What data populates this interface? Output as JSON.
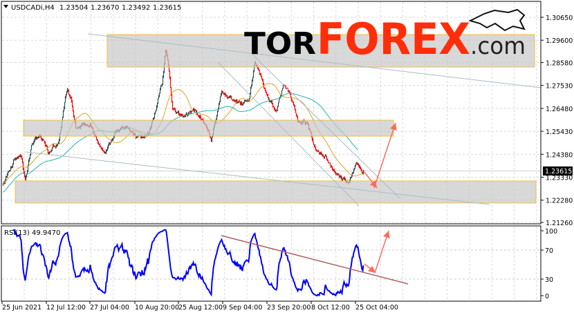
{
  "header": {
    "dropdown_icon": "triangle-down-icon",
    "symbol": "USDCADi,H4",
    "open": "1.23504",
    "high": "1.23670",
    "low": "1.23492",
    "close": "1.23615"
  },
  "logo": {
    "part1": "TOR",
    "part2": "FOREX",
    "part3": ".com",
    "icon": "wolf-head-icon"
  },
  "chart_data": [
    {
      "type": "candlestick",
      "symbol": "USDCADi",
      "timeframe": "H4",
      "ylim": [
        1.2126,
        1.3065
      ],
      "y_ticks": [
        "1.30650",
        "1.29600",
        "1.28580",
        "1.27530",
        "1.26480",
        "1.25430",
        "1.24380",
        "1.23330",
        "1.22280",
        "1.21260"
      ],
      "current_price": "1.23615",
      "x_ticks": [
        "25 Jun 2021",
        "12 Jul 12:00",
        "27 Jul 04:00",
        "10 Aug 20:00",
        "25 Aug 12:00",
        "9 Sep 04:00",
        "23 Sep 20:00",
        "8 Oct 12:00",
        "25 Oct 04:00"
      ],
      "grid": true,
      "colors": {
        "bull": "#2f4f4f",
        "bear": "#ff0000",
        "ma_fast": "#daa520",
        "ma_slow": "#20b2aa",
        "zone_border": "#f0c040",
        "trendline": "#a9bcc8",
        "forecast_arrow": "#ff6a5a"
      },
      "price_path": [
        [
          "2021-06-25T12",
          1.2297
        ],
        [
          "2021-06-29T14",
          1.2411
        ],
        [
          "2021-07-02T10",
          1.2433
        ],
        [
          "2021-07-04T00",
          1.2316
        ],
        [
          "2021-07-06T12",
          1.248
        ],
        [
          "2021-07-10T00",
          1.2527
        ],
        [
          "2021-07-13T00",
          1.2448
        ],
        [
          "2021-07-16T14",
          1.2496
        ],
        [
          "2021-07-19T10",
          1.2733
        ],
        [
          "2021-07-20T17",
          1.2686
        ],
        [
          "2021-07-22T07",
          1.2559
        ],
        [
          "2021-07-27T04",
          1.2575
        ],
        [
          "2021-07-30T14",
          1.2464
        ],
        [
          "2021-08-01T00",
          1.2433
        ],
        [
          "2021-08-04T04",
          1.2527
        ],
        [
          "2021-08-07T16",
          1.2559
        ],
        [
          "2021-08-11T22",
          1.2512
        ],
        [
          "2021-08-15T10",
          1.2527
        ],
        [
          "2021-08-17T16",
          1.2638
        ],
        [
          "2021-08-20T00",
          1.2765
        ],
        [
          "2021-08-21T03",
          1.2923
        ],
        [
          "2021-08-22T07",
          1.2828
        ],
        [
          "2021-08-23T10",
          1.2638
        ],
        [
          "2021-08-27T02",
          1.2607
        ],
        [
          "2021-08-30T12",
          1.2638
        ],
        [
          "2021-09-03T00",
          1.2591
        ],
        [
          "2021-09-05T07",
          1.2512
        ],
        [
          "2021-09-08T17",
          1.2717
        ],
        [
          "2021-09-12T04",
          1.2701
        ],
        [
          "2021-09-15T14",
          1.267
        ],
        [
          "2021-09-17T22",
          1.2686
        ],
        [
          "2021-09-19T17",
          1.286
        ],
        [
          "2021-09-20T14",
          1.2828
        ],
        [
          "2021-09-23T14",
          1.2717
        ],
        [
          "2021-09-27T00",
          1.2638
        ],
        [
          "2021-09-29T07",
          1.2765
        ],
        [
          "2021-10-01T14",
          1.2701
        ],
        [
          "2021-10-03T22",
          1.2591
        ],
        [
          "2021-10-07T07",
          1.2575
        ],
        [
          "2021-10-09T19",
          1.2464
        ],
        [
          "2021-10-13T17",
          1.2433
        ],
        [
          "2021-10-16T07",
          1.2369
        ],
        [
          "2021-10-20T05",
          1.2322
        ],
        [
          "2021-10-22T19",
          1.2316
        ],
        [
          "2021-10-25T10",
          1.2385
        ],
        [
          "2021-10-28T00",
          1.23615
        ]
      ],
      "zones": [
        {
          "from": 1.2837,
          "to": 1.2986
        },
        {
          "from": 1.2521,
          "to": 1.2594
        },
        {
          "from": 1.2215,
          "to": 1.2316
        }
      ]
    },
    {
      "type": "line",
      "indicator": "RSI",
      "label": "RSI(13) 49.9470",
      "period": 13,
      "ylim": [
        0,
        100
      ],
      "y_ticks": [
        "100",
        "70",
        "30",
        "0"
      ],
      "levels": [
        70,
        30
      ],
      "color": "#0000ff",
      "trendline_color": "#b06060"
    }
  ]
}
